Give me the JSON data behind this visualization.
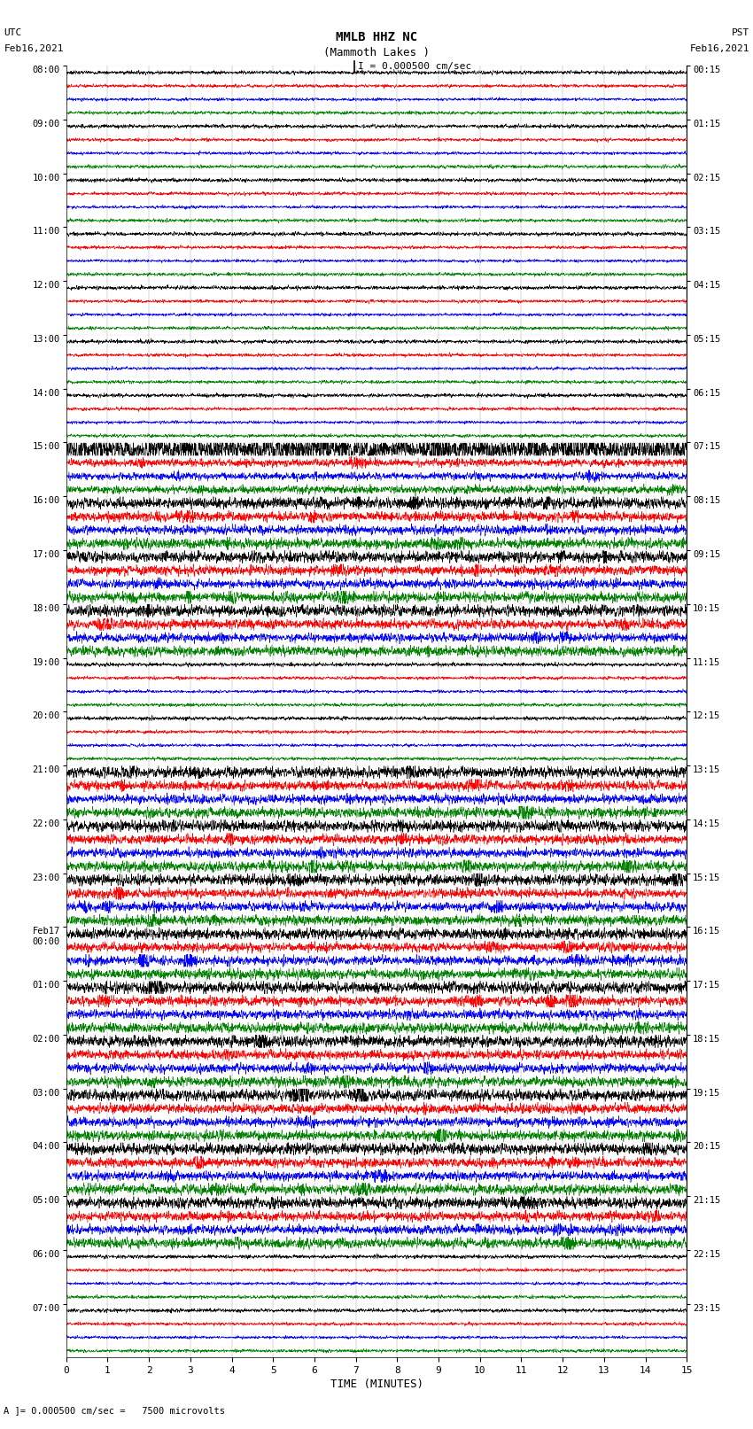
{
  "title_line1": "MMLB HHZ NC",
  "title_line2": "(Mammoth Lakes )",
  "title_line3": "I = 0.000500 cm/sec",
  "left_label_top": "UTC",
  "left_label_date": "Feb16,2021",
  "right_label_top": "PST",
  "right_label_date": "Feb16,2021",
  "xlabel": "TIME (MINUTES)",
  "bottom_note": "A ]= 0.000500 cm/sec =   7500 microvolts",
  "num_hour_blocks": 24,
  "traces_per_block": 4,
  "minutes_per_row": 15,
  "colors": [
    "black",
    "red",
    "blue",
    "green"
  ],
  "fig_width": 8.5,
  "fig_height": 16.13,
  "bg_color": "white",
  "seed": 42,
  "utc_labels": [
    "08:00",
    "09:00",
    "10:00",
    "11:00",
    "12:00",
    "13:00",
    "14:00",
    "15:00",
    "16:00",
    "17:00",
    "18:00",
    "19:00",
    "20:00",
    "21:00",
    "22:00",
    "23:00",
    "Feb17\n00:00",
    "01:00",
    "02:00",
    "03:00",
    "04:00",
    "05:00",
    "06:00",
    "07:00"
  ],
  "pst_labels": [
    "00:15",
    "01:15",
    "02:15",
    "03:15",
    "04:15",
    "05:15",
    "06:15",
    "07:15",
    "08:15",
    "09:15",
    "10:15",
    "11:15",
    "12:15",
    "13:15",
    "14:15",
    "15:15",
    "16:15",
    "17:15",
    "18:15",
    "19:15",
    "20:15",
    "21:15",
    "22:15",
    "23:15"
  ],
  "base_amp": 0.06,
  "event_amp_blocks": [
    7,
    8,
    9,
    10,
    13,
    14,
    19,
    20,
    21,
    15,
    16,
    17,
    18
  ],
  "event_amp_scale": 0.18,
  "high_amp_blocks": [
    7
  ],
  "high_amp_scale": 0.38,
  "lw": 0.4
}
